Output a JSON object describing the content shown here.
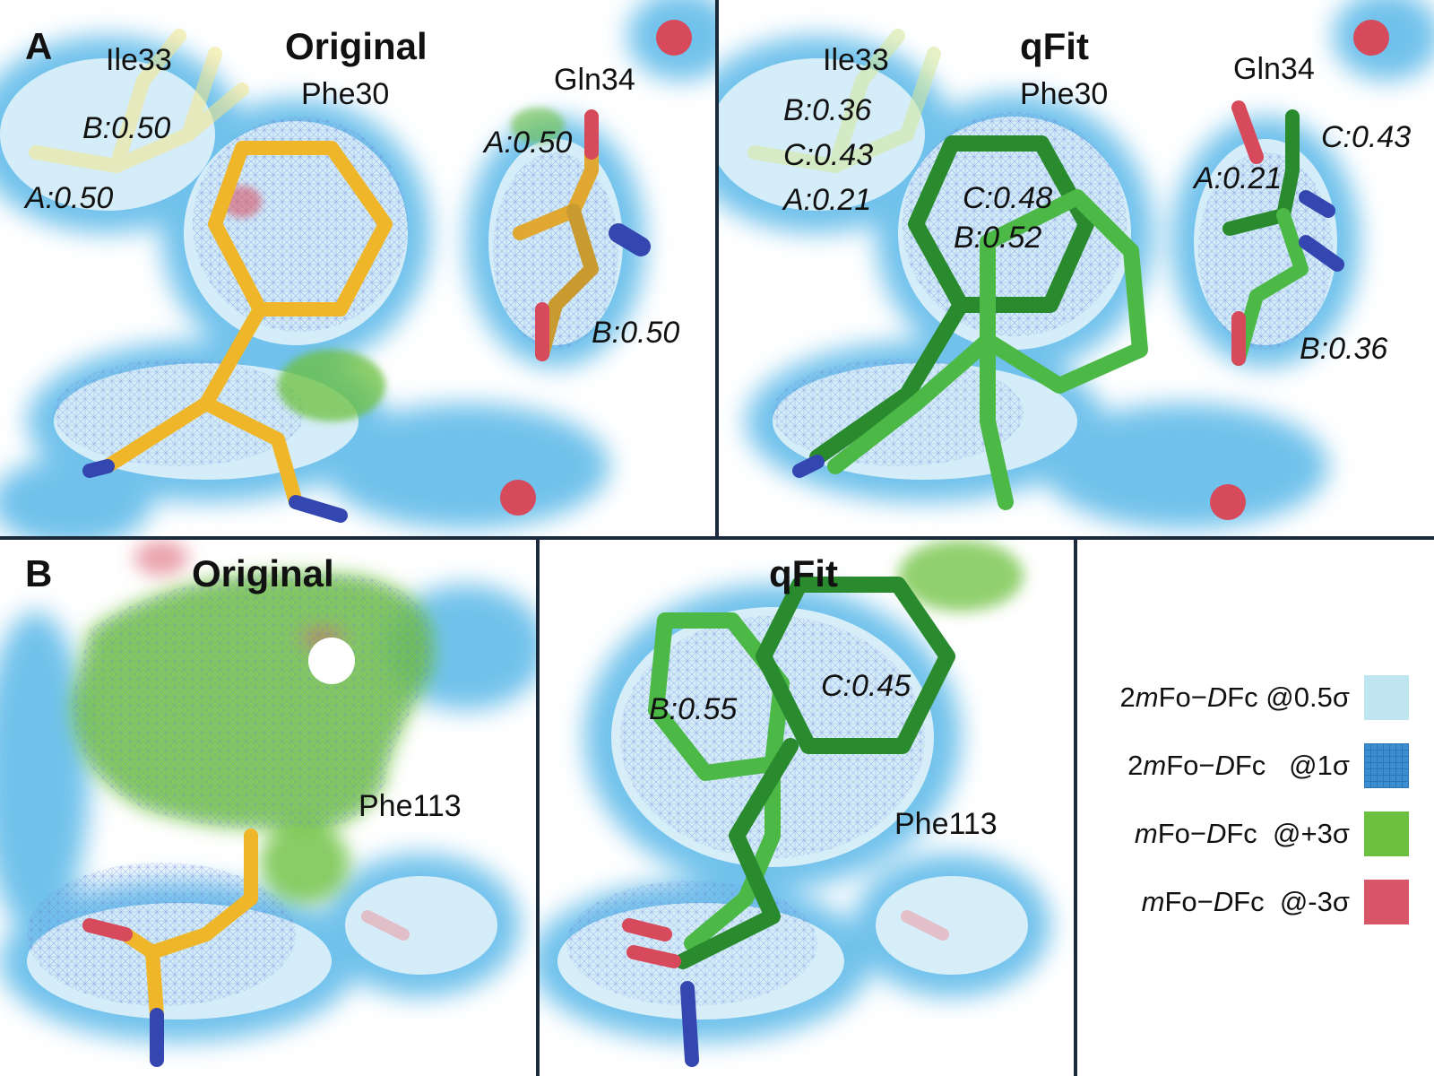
{
  "panelA": {
    "letter": "A",
    "left": {
      "title": "Original",
      "residues": {
        "ile": "Ile33",
        "phe": "Phe30",
        "gln": "Gln34"
      },
      "occupancies": {
        "ile_b": "B:0.50",
        "ile_a": "A:0.50",
        "gln_a": "A:0.50",
        "gln_b": "B:0.50"
      }
    },
    "right": {
      "title": "qFit",
      "residues": {
        "ile": "Ile33",
        "phe": "Phe30",
        "gln": "Gln34"
      },
      "occupancies": {
        "ile_b": "B:0.36",
        "ile_c": "C:0.43",
        "ile_a": "A:0.21",
        "phe_c": "C:0.48",
        "phe_b": "B:0.52",
        "gln_c": "C:0.43",
        "gln_a": "A:0.21",
        "gln_b": "B:0.36"
      }
    }
  },
  "panelB": {
    "letter": "B",
    "left": {
      "title": "Original",
      "residue": "Phe113"
    },
    "right": {
      "title": "qFit",
      "residue": "Phe113",
      "occupancies": {
        "b": "B:0.55",
        "c": "C:0.45"
      }
    }
  },
  "legend": [
    {
      "pre": "2",
      "m": "m",
      "fo": "Fo−",
      "d": "D",
      "fc": "Fc",
      "sigma": "@0.5σ",
      "color": "#bfe6f0"
    },
    {
      "pre": "2",
      "m": "m",
      "fo": "Fo−",
      "d": "D",
      "fc": "Fc",
      "sigma": "@1σ",
      "color": "#3b8fd0"
    },
    {
      "pre": "",
      "m": "m",
      "fo": "Fo−",
      "d": "D",
      "fc": "Fc",
      "sigma": "@+3σ",
      "color": "#6cc03f"
    },
    {
      "pre": "",
      "m": "m",
      "fo": "Fo−",
      "d": "D",
      "fc": "Fc",
      "sigma": "@-3σ",
      "color": "#d95668"
    }
  ],
  "colors": {
    "density_glow": "#58b7e8",
    "density_fill": "#dff2fa",
    "mesh": "#6a86d8",
    "original_stick": "#f0b62a",
    "qfit_dark": "#2a8a2e",
    "qfit_light": "#4cb846",
    "difference_positive": "#6cc03f",
    "difference_negative": "#d95668",
    "nitrogen": "#3446b0",
    "oxygen": "#d64a5c",
    "water": "#d64a5c"
  }
}
